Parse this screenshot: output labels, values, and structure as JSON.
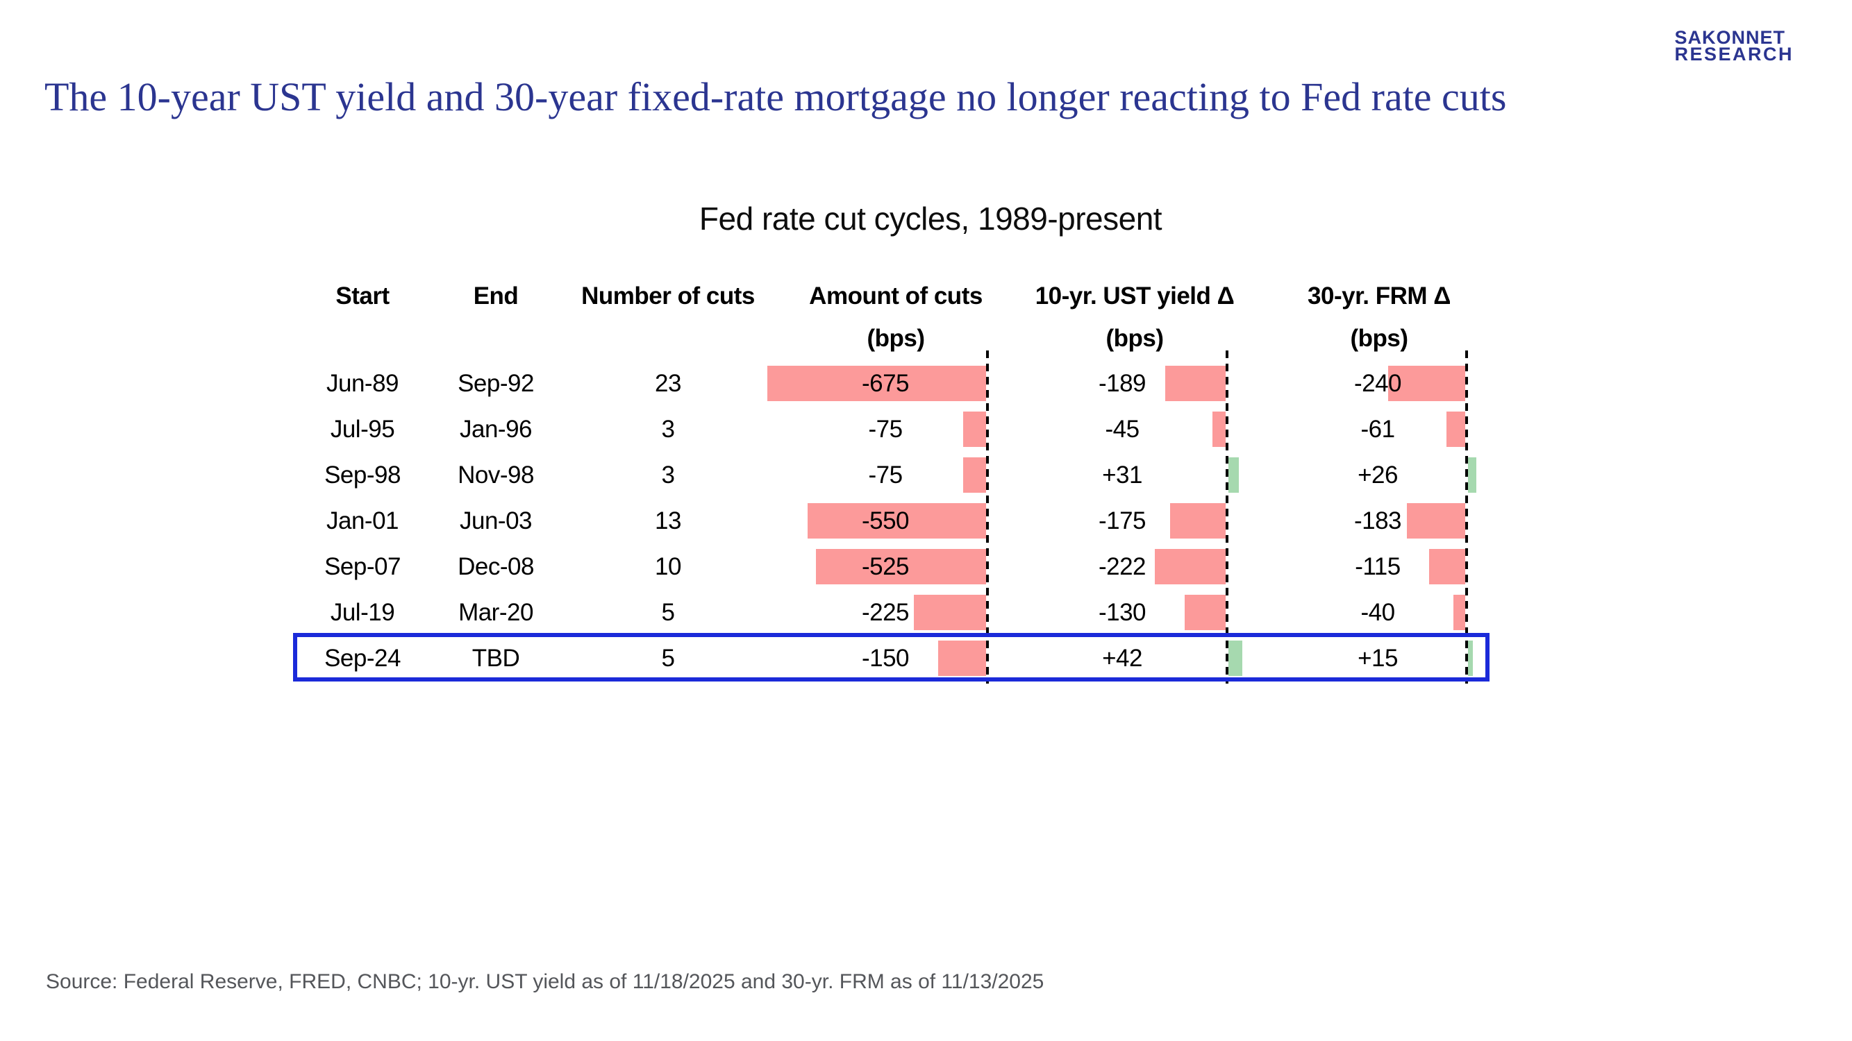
{
  "logo": {
    "line1": "SAKONNET",
    "line2": "RESEARCH"
  },
  "slide_title": "The 10-year UST yield and 30-year fixed-rate mortgage no longer reacting to Fed rate cuts",
  "source": "Source: Federal Reserve, FRED, CNBC; 10-yr. UST yield as of 11/18/2025 and 30-yr. FRM as of 11/13/2025",
  "chart_data": {
    "type": "table",
    "title": "Fed rate cut cycles, 1989-present",
    "columns": [
      "Start",
      "End",
      "Number of cuts",
      "Amount of cuts",
      "10-yr. UST yield Δ",
      "30-yr. FRM Δ"
    ],
    "subheaders": [
      "",
      "",
      "",
      "(bps)",
      "(bps)",
      "(bps)"
    ],
    "bar_unit": "bps",
    "bar_note": "negative values drawn as pink bars extending left of a dashed zero line; positive values as green bars extending right",
    "rows": [
      {
        "start": "Jun-89",
        "end": "Sep-92",
        "cuts": "23",
        "amount": -675,
        "ust": -189,
        "frm": -240,
        "highlight": false
      },
      {
        "start": "Jul-95",
        "end": "Jan-96",
        "cuts": "3",
        "amount": -75,
        "ust": -45,
        "frm": -61,
        "highlight": false
      },
      {
        "start": "Sep-98",
        "end": "Nov-98",
        "cuts": "3",
        "amount": -75,
        "ust": 31,
        "frm": 26,
        "highlight": false
      },
      {
        "start": "Jan-01",
        "end": "Jun-03",
        "cuts": "13",
        "amount": -550,
        "ust": -175,
        "frm": -183,
        "highlight": false
      },
      {
        "start": "Sep-07",
        "end": "Dec-08",
        "cuts": "10",
        "amount": -525,
        "ust": -222,
        "frm": -115,
        "highlight": false
      },
      {
        "start": "Jul-19",
        "end": "Mar-20",
        "cuts": "5",
        "amount": -225,
        "ust": -130,
        "frm": -40,
        "highlight": false
      },
      {
        "start": "Sep-24",
        "end": "TBD",
        "cuts": "5",
        "amount": -150,
        "ust": 42,
        "frm": 15,
        "highlight": true
      }
    ]
  },
  "colors": {
    "negative_bar": "#fc9a9a",
    "positive_bar": "#a6d9af",
    "highlight_border": "#1b2ad9",
    "brand_navy": "#2b3590",
    "source_gray": "#54565a"
  }
}
